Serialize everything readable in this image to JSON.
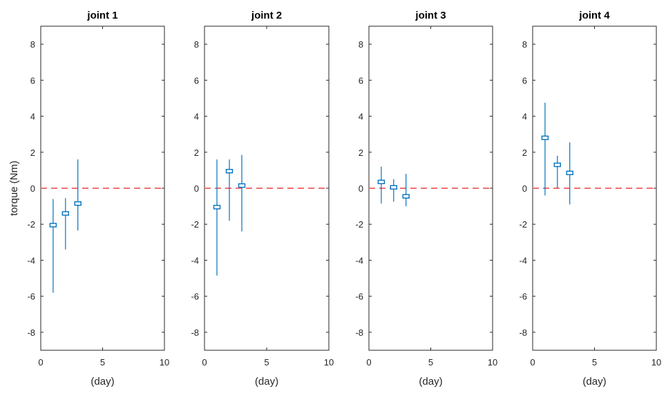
{
  "chart_data": [
    {
      "type": "errorbar",
      "title": "joint 1",
      "xlabel": "(day)",
      "ylabel": "torque (Nm)",
      "xlim": [
        0,
        10
      ],
      "ylim": [
        -9,
        9
      ],
      "xticks": [
        "0",
        "5",
        "10"
      ],
      "yticks": [
        "8",
        "6",
        "4",
        "2",
        "0",
        "-2",
        "-4",
        "-6",
        "-8"
      ],
      "reference_line": {
        "y": 0,
        "style": "dashed",
        "color": "#f07070"
      },
      "points": [
        {
          "x": 1,
          "mean": -2.05,
          "low": -5.8,
          "high": -0.6
        },
        {
          "x": 2,
          "mean": -1.4,
          "low": -3.4,
          "high": -0.55
        },
        {
          "x": 3,
          "mean": -0.85,
          "low": -2.35,
          "high": 1.6
        }
      ]
    },
    {
      "type": "errorbar",
      "title": "joint 2",
      "xlabel": "(day)",
      "ylabel": "",
      "xlim": [
        0,
        10
      ],
      "ylim": [
        -9,
        9
      ],
      "xticks": [
        "0",
        "5",
        "10"
      ],
      "yticks": [
        "8",
        "6",
        "4",
        "2",
        "0",
        "-2",
        "-4",
        "-6",
        "-8"
      ],
      "reference_line": {
        "y": 0,
        "style": "dashed",
        "color": "#f07070"
      },
      "points": [
        {
          "x": 1,
          "mean": -1.05,
          "low": -4.85,
          "high": 1.6
        },
        {
          "x": 2,
          "mean": 0.95,
          "low": -1.8,
          "high": 1.6
        },
        {
          "x": 3,
          "mean": 0.15,
          "low": -2.4,
          "high": 1.85
        }
      ]
    },
    {
      "type": "errorbar",
      "title": "joint 3",
      "xlabel": "(day)",
      "ylabel": "",
      "xlim": [
        0,
        10
      ],
      "ylim": [
        -9,
        9
      ],
      "xticks": [
        "0",
        "5",
        "10"
      ],
      "yticks": [
        "8",
        "6",
        "4",
        "2",
        "0",
        "-2",
        "-4",
        "-6",
        "-8"
      ],
      "reference_line": {
        "y": 0,
        "style": "dashed",
        "color": "#f07070"
      },
      "points": [
        {
          "x": 1,
          "mean": 0.35,
          "low": -0.85,
          "high": 1.2
        },
        {
          "x": 2,
          "mean": 0.05,
          "low": -0.75,
          "high": 0.5
        },
        {
          "x": 3,
          "mean": -0.45,
          "low": -1.0,
          "high": 0.8
        }
      ]
    },
    {
      "type": "errorbar",
      "title": "joint 4",
      "xlabel": "(day)",
      "ylabel": "",
      "xlim": [
        0,
        10
      ],
      "ylim": [
        -9,
        9
      ],
      "xticks": [
        "0",
        "5",
        "10"
      ],
      "yticks": [
        "8",
        "6",
        "4",
        "2",
        "0",
        "-2",
        "-4",
        "-6",
        "-8"
      ],
      "reference_line": {
        "y": 0,
        "style": "dashed",
        "color": "#f07070"
      },
      "points": [
        {
          "x": 1,
          "mean": 2.8,
          "low": -0.4,
          "high": 4.75
        },
        {
          "x": 2,
          "mean": 1.3,
          "low": 0.0,
          "high": 1.8
        },
        {
          "x": 3,
          "mean": 0.85,
          "low": -0.9,
          "high": 2.55
        }
      ]
    }
  ],
  "colors": {
    "series": "#0072bd",
    "reference": "#f07070",
    "axes": "#262626"
  }
}
